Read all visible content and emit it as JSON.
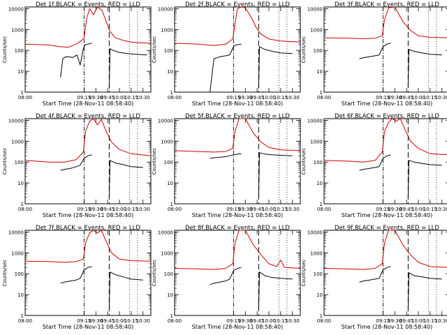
{
  "chart_data": [
    {
      "type": "line",
      "title": "Det 1f,BLACK = Events, RED = LLD",
      "xlabel": "Start Time (28-Nov-11 08:58:40)",
      "ylabel": "Counts/sec",
      "yscale": "log",
      "ylim": [
        1,
        12000
      ],
      "xlim": [
        "08:00",
        "10:40"
      ],
      "xticks": [
        "08:00",
        "09:15",
        "09:30",
        "09:45",
        "10:00",
        "10:15",
        "10:30"
      ],
      "yticks": [
        "1",
        "10",
        "100",
        "1000",
        "10000"
      ],
      "vlines_dashdot": [
        "09:15"
      ],
      "vlines_dashed": [
        "09:47"
      ],
      "vlines_dotted": [
        "10:13",
        "10:23"
      ],
      "series": [
        {
          "color": "#000000",
          "x": [
            "08:45",
            "08:48",
            "08:52",
            "08:58",
            "09:00",
            "09:06",
            "09:10",
            "09:14",
            "09:16",
            "09:20",
            "09:25"
          ],
          "y": [
            5,
            40,
            50,
            48,
            45,
            60,
            20,
            120,
            180,
            200,
            220
          ]
        },
        {
          "color": "#000000",
          "x": [
            "09:47",
            "09:48",
            "09:52",
            "10:00",
            "10:10",
            "10:20",
            "10:35"
          ],
          "y": [
            1.5,
            120,
            100,
            80,
            70,
            65,
            60
          ]
        },
        {
          "color": "#d00000",
          "x": [
            "08:00",
            "08:30",
            "08:45",
            "08:55",
            "09:05",
            "09:12",
            "09:15",
            "09:18",
            "09:22",
            "09:27",
            "09:32",
            "09:38",
            "09:44",
            "09:48",
            "09:55",
            "10:05",
            "10:15",
            "10:25",
            "10:40"
          ],
          "y": [
            200,
            180,
            150,
            140,
            200,
            300,
            400,
            3000,
            10000,
            5000,
            12000,
            8000,
            2000,
            800,
            400,
            300,
            250,
            230,
            220
          ]
        }
      ]
    },
    {
      "type": "line",
      "title": "Det 2f,BLACK = Events, RED = LLD",
      "xlabel": "Start Time (28-Nov-11 08:58:40)",
      "ylabel": "Counts/sec",
      "yscale": "log",
      "ylim": [
        1,
        12000
      ],
      "xlim": [
        "08:00",
        "10:40"
      ],
      "xticks": [
        "08:00",
        "09:15",
        "09:30",
        "09:45",
        "10:00",
        "10:15",
        "10:30"
      ],
      "yticks": [
        "1",
        "10",
        "100",
        "1000",
        "10000"
      ],
      "vlines_dashdot": [
        "09:15"
      ],
      "vlines_dashed": [
        "09:47"
      ],
      "vlines_dotted": [
        "10:13",
        "10:23"
      ],
      "series": [
        {
          "color": "#000000",
          "x": [
            "08:45",
            "08:50",
            "08:58",
            "09:05",
            "09:10",
            "09:15",
            "09:18",
            "09:25"
          ],
          "y": [
            1,
            40,
            50,
            55,
            60,
            150,
            180,
            200
          ]
        },
        {
          "color": "#000000",
          "x": [
            "09:47",
            "09:48",
            "09:55",
            "10:05",
            "10:15",
            "10:30"
          ],
          "y": [
            1.5,
            150,
            110,
            90,
            75,
            70
          ]
        },
        {
          "color": "#d00000",
          "x": [
            "08:00",
            "08:30",
            "08:50",
            "09:05",
            "09:14",
            "09:17",
            "09:20",
            "09:25",
            "09:30",
            "09:38",
            "09:44",
            "09:50",
            "10:00",
            "10:15",
            "10:40"
          ],
          "y": [
            220,
            200,
            170,
            200,
            350,
            2000,
            10000,
            12000,
            11000,
            3500,
            1200,
            600,
            350,
            280,
            250
          ]
        }
      ]
    },
    {
      "type": "line",
      "title": "Det 3f,BLACK = Events, RED = LLD",
      "xlabel": "Start Time (28-Nov-11 08:58:40)",
      "ylabel": "Counts/sec",
      "yscale": "log",
      "ylim": [
        1,
        12000
      ],
      "xlim": [
        "08:00",
        "10:40"
      ],
      "xticks": [
        "08:00",
        "09:15",
        "09:30",
        "09:45",
        "10:00",
        "10:15",
        "10:30"
      ],
      "yticks": [
        "1",
        "10",
        "100",
        "1000",
        "10000"
      ],
      "vlines_dashdot": [
        "09:15"
      ],
      "vlines_dashed": [
        "09:47"
      ],
      "vlines_dotted": [
        "10:13",
        "10:23"
      ],
      "series": [
        {
          "color": "#000000",
          "x": [
            "08:45",
            "08:50",
            "08:58",
            "09:05",
            "09:10",
            "09:15",
            "09:20",
            "09:25"
          ],
          "y": [
            40,
            45,
            50,
            55,
            60,
            150,
            200,
            220
          ]
        },
        {
          "color": "#000000",
          "x": [
            "09:47",
            "09:48",
            "09:55",
            "10:05",
            "10:15",
            "10:30"
          ],
          "y": [
            2,
            110,
            90,
            75,
            65,
            60
          ]
        },
        {
          "color": "#d00000",
          "x": [
            "08:00",
            "08:30",
            "08:50",
            "09:05",
            "09:14",
            "09:17",
            "09:22",
            "09:30",
            "09:40",
            "09:50",
            "10:00",
            "10:15",
            "10:40"
          ],
          "y": [
            400,
            380,
            360,
            380,
            500,
            3000,
            11000,
            12000,
            2500,
            900,
            500,
            420,
            400
          ]
        }
      ]
    },
    {
      "type": "line",
      "title": "Det 4f,BLACK = Events, RED = LLD",
      "xlabel": "Start Time (28-Nov-11 08:58:40)",
      "ylabel": "Counts/sec",
      "yscale": "log",
      "ylim": [
        1,
        12000
      ],
      "xlim": [
        "08:00",
        "10:40"
      ],
      "xticks": [
        "08:00",
        "09:15",
        "09:30",
        "09:45",
        "10:00",
        "10:15",
        "10:30"
      ],
      "yticks": [
        "1",
        "10",
        "100",
        "1000",
        "10000"
      ],
      "vlines_dashdot": [
        "09:15"
      ],
      "vlines_dashed": [
        "09:47"
      ],
      "vlines_dotted": [
        "10:13",
        "10:23"
      ],
      "series": [
        {
          "color": "#000000",
          "x": [
            "08:45",
            "08:50",
            "08:58",
            "09:05",
            "09:10",
            "09:15",
            "09:20",
            "09:25"
          ],
          "y": [
            40,
            45,
            50,
            60,
            70,
            150,
            200,
            220
          ]
        },
        {
          "color": "#000000",
          "x": [
            "09:47",
            "09:48",
            "09:55",
            "10:05",
            "10:15",
            "10:30"
          ],
          "y": [
            2,
            120,
            90,
            75,
            60,
            55
          ]
        },
        {
          "color": "#d00000",
          "x": [
            "08:00",
            "08:30",
            "08:50",
            "09:05",
            "09:14",
            "09:17",
            "09:22",
            "09:27",
            "09:32",
            "09:37",
            "09:44",
            "09:50",
            "10:00",
            "10:15",
            "10:40"
          ],
          "y": [
            120,
            100,
            100,
            130,
            300,
            3000,
            9000,
            12000,
            6000,
            11000,
            2500,
            900,
            400,
            250,
            200
          ]
        }
      ]
    },
    {
      "type": "line",
      "title": "Det 5f,BLACK = Events, RED = LLD",
      "xlabel": "Start Time (28-Nov-11 08:58:40)",
      "ylabel": "Counts/sec",
      "yscale": "log",
      "ylim": [
        1,
        12000
      ],
      "xlim": [
        "08:00",
        "10:40"
      ],
      "xticks": [
        "08:00",
        "09:15",
        "09:30",
        "09:45",
        "10:00",
        "10:15",
        "10:30"
      ],
      "yticks": [
        "1",
        "10",
        "100",
        "1000",
        "10000"
      ],
      "vlines_dashdot": [
        "09:15"
      ],
      "vlines_dashed": [
        "09:47"
      ],
      "vlines_dotted": [
        "10:13",
        "10:23"
      ],
      "series": [
        {
          "color": "#000000",
          "x": [
            "08:45",
            "08:50",
            "08:58",
            "09:05",
            "09:10",
            "09:15",
            "09:20",
            "09:25"
          ],
          "y": [
            150,
            160,
            170,
            180,
            200,
            220,
            240,
            250
          ]
        },
        {
          "color": "#000000",
          "x": [
            "09:47",
            "09:48",
            "09:55",
            "10:05",
            "10:15",
            "10:30"
          ],
          "y": [
            2,
            280,
            240,
            220,
            210,
            200
          ]
        },
        {
          "color": "#d00000",
          "x": [
            "08:00",
            "08:30",
            "08:50",
            "09:05",
            "09:14",
            "09:17",
            "09:22",
            "09:30",
            "09:40",
            "09:50",
            "10:00",
            "10:15",
            "10:40"
          ],
          "y": [
            350,
            320,
            300,
            320,
            450,
            3000,
            12000,
            12000,
            2500,
            900,
            500,
            380,
            350
          ]
        }
      ]
    },
    {
      "type": "line",
      "title": "Det 6f,BLACK = Events, RED = LLD",
      "xlabel": "Start Time (28-Nov-11 08:58:40)",
      "ylabel": "Counts/sec",
      "yscale": "log",
      "ylim": [
        1,
        12000
      ],
      "xlim": [
        "08:00",
        "10:40"
      ],
      "xticks": [
        "08:00",
        "09:15",
        "09:30",
        "09:45",
        "10:00",
        "10:15",
        "10:30"
      ],
      "yticks": [
        "1",
        "10",
        "100",
        "1000",
        "10000"
      ],
      "vlines_dashdot": [
        "09:15"
      ],
      "vlines_dashed": [
        "09:47"
      ],
      "vlines_dotted": [
        "10:13",
        "10:23"
      ],
      "series": [
        {
          "color": "#000000",
          "x": [
            "08:45",
            "08:50",
            "08:58",
            "09:05",
            "09:10",
            "09:15",
            "09:20",
            "09:25"
          ],
          "y": [
            40,
            45,
            50,
            55,
            60,
            150,
            200,
            220
          ]
        },
        {
          "color": "#000000",
          "x": [
            "09:47",
            "09:48",
            "09:55",
            "10:05",
            "10:15",
            "10:30"
          ],
          "y": [
            2,
            120,
            100,
            85,
            75,
            70
          ]
        },
        {
          "color": "#d00000",
          "x": [
            "08:00",
            "08:30",
            "08:50",
            "09:05",
            "09:14",
            "09:17",
            "09:22",
            "09:27",
            "09:32",
            "09:37",
            "09:44",
            "09:50",
            "10:00",
            "10:15",
            "10:40"
          ],
          "y": [
            120,
            110,
            100,
            120,
            300,
            3000,
            8000,
            12000,
            9000,
            12000,
            3000,
            1000,
            450,
            250,
            220
          ]
        }
      ]
    },
    {
      "type": "line",
      "title": "Det 7f,BLACK = Events, RED = LLD",
      "xlabel": "Start Time (28-Nov-11 08:58:40)",
      "ylabel": "Counts/sec",
      "yscale": "log",
      "ylim": [
        1,
        12000
      ],
      "xlim": [
        "08:00",
        "10:40"
      ],
      "xticks": [
        "08:00",
        "09:15",
        "09:30",
        "09:45",
        "10:00",
        "10:15",
        "10:30"
      ],
      "yticks": [
        "1",
        "10",
        "100",
        "1000",
        "10000"
      ],
      "vlines_dashdot": [
        "09:15"
      ],
      "vlines_dashed": [
        "09:47"
      ],
      "vlines_dotted": [
        "10:13",
        "10:23"
      ],
      "series": [
        {
          "color": "#000000",
          "x": [
            "08:45",
            "08:50",
            "08:58",
            "09:05",
            "09:10",
            "09:15",
            "09:20",
            "09:25"
          ],
          "y": [
            35,
            40,
            45,
            50,
            60,
            150,
            200,
            220
          ]
        },
        {
          "color": "#000000",
          "x": [
            "09:47",
            "09:48",
            "09:55",
            "10:05",
            "10:15",
            "10:30"
          ],
          "y": [
            2,
            120,
            90,
            70,
            55,
            50
          ]
        },
        {
          "color": "#d00000",
          "x": [
            "08:00",
            "08:30",
            "08:50",
            "09:05",
            "09:14",
            "09:17",
            "09:22",
            "09:27",
            "09:32",
            "09:37",
            "09:44",
            "09:50",
            "10:00",
            "10:15",
            "10:40"
          ],
          "y": [
            400,
            380,
            350,
            380,
            500,
            3000,
            9000,
            12000,
            9000,
            12000,
            3000,
            1000,
            500,
            420,
            400
          ]
        }
      ]
    },
    {
      "type": "line",
      "title": "Det 8f,BLACK = Events, RED = LLD",
      "xlabel": "Start Time (28-Nov-11 08:58:40)",
      "ylabel": "Counts/sec",
      "yscale": "log",
      "ylim": [
        1,
        12000
      ],
      "xlim": [
        "08:00",
        "10:40"
      ],
      "xticks": [
        "08:00",
        "09:15",
        "09:30",
        "09:45",
        "10:00",
        "10:15",
        "10:30"
      ],
      "yticks": [
        "1",
        "10",
        "100",
        "1000",
        "10000"
      ],
      "vlines_dashdot": [
        "09:15"
      ],
      "vlines_dashed": [
        "09:47"
      ],
      "vlines_dotted": [
        "10:13",
        "10:23"
      ],
      "series": [
        {
          "color": "#000000",
          "x": [
            "08:45",
            "08:50",
            "08:58",
            "09:05",
            "09:10",
            "09:15",
            "09:20",
            "09:25"
          ],
          "y": [
            30,
            35,
            40,
            45,
            55,
            140,
            180,
            200
          ]
        },
        {
          "color": "#000000",
          "x": [
            "09:47",
            "09:48",
            "09:55",
            "10:05",
            "10:15",
            "10:30"
          ],
          "y": [
            2,
            120,
            80,
            65,
            60,
            55
          ]
        },
        {
          "color": "#d00000",
          "x": [
            "08:00",
            "08:30",
            "08:50",
            "09:05",
            "09:14",
            "09:17",
            "09:22",
            "09:30",
            "09:40",
            "09:50",
            "10:00",
            "10:10",
            "10:15",
            "10:20",
            "10:40"
          ],
          "y": [
            180,
            170,
            160,
            180,
            300,
            3000,
            12000,
            12000,
            2500,
            800,
            300,
            220,
            450,
            200,
            180
          ]
        }
      ]
    },
    {
      "type": "line",
      "title": "Det 9f,BLACK = Events, RED = LLD",
      "xlabel": "Start Time (28-Nov-11 08:58:40)",
      "ylabel": "Counts/sec",
      "yscale": "log",
      "ylim": [
        1,
        12000
      ],
      "xlim": [
        "08:00",
        "10:40"
      ],
      "xticks": [
        "08:00",
        "09:15",
        "09:30",
        "09:45",
        "10:00",
        "10:15",
        "10:30"
      ],
      "yticks": [
        "1",
        "10",
        "100",
        "1000",
        "10000"
      ],
      "vlines_dashdot": [
        "09:15"
      ],
      "vlines_dashed": [
        "09:47"
      ],
      "vlines_dotted": [
        "10:13",
        "10:23"
      ],
      "series": [
        {
          "color": "#000000",
          "x": [
            "08:45",
            "08:50",
            "08:58",
            "09:05",
            "09:10",
            "09:15",
            "09:20",
            "09:25"
          ],
          "y": [
            40,
            45,
            50,
            55,
            60,
            150,
            200,
            220
          ]
        },
        {
          "color": "#000000",
          "x": [
            "09:47",
            "09:48",
            "09:55",
            "10:05",
            "10:15",
            "10:30"
          ],
          "y": [
            2,
            110,
            80,
            70,
            60,
            55
          ]
        },
        {
          "color": "#d00000",
          "x": [
            "08:00",
            "08:30",
            "08:50",
            "09:05",
            "09:14",
            "09:17",
            "09:22",
            "09:30",
            "09:40",
            "09:50",
            "10:00",
            "10:15",
            "10:40"
          ],
          "y": [
            180,
            170,
            160,
            180,
            300,
            3000,
            12000,
            12000,
            2500,
            800,
            350,
            220,
            200
          ]
        }
      ]
    }
  ]
}
